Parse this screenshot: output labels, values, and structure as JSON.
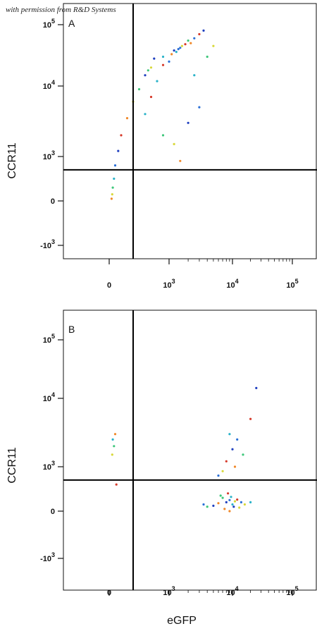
{
  "watermark": "with permission from R&D Systems",
  "chart_data": [
    {
      "type": "scatter",
      "panel": "A",
      "xlabel": "",
      "ylabel": "CCR11",
      "x_ticks": [
        {
          "value": 0,
          "label": "0"
        },
        {
          "value": 1000,
          "label": "10",
          "exp": "3"
        },
        {
          "value": 10000,
          "label": "10",
          "exp": "4"
        },
        {
          "value": 100000,
          "label": "10",
          "exp": "5"
        }
      ],
      "y_ticks": [
        {
          "value": -1000,
          "label": "-10",
          "exp": "3"
        },
        {
          "value": 0,
          "label": "0"
        },
        {
          "value": 1000,
          "label": "10",
          "exp": "3"
        },
        {
          "value": 10000,
          "label": "10",
          "exp": "4"
        },
        {
          "value": 100000,
          "label": "10",
          "exp": "5"
        }
      ],
      "x_gate": 400,
      "y_gate": 700,
      "points": [
        [
          1200,
          38000
        ],
        [
          1500,
          42000
        ],
        [
          900,
          30000
        ],
        [
          2000,
          55000
        ],
        [
          700,
          20000
        ],
        [
          1100,
          33000
        ],
        [
          1800,
          48000
        ],
        [
          600,
          15000
        ],
        [
          2500,
          60000
        ],
        [
          1300,
          36000
        ],
        [
          500,
          9000
        ],
        [
          400,
          6000
        ],
        [
          300,
          3500
        ],
        [
          200,
          2000
        ],
        [
          150,
          1200
        ],
        [
          100,
          800
        ],
        [
          80,
          500
        ],
        [
          60,
          300
        ],
        [
          50,
          150
        ],
        [
          40,
          50
        ],
        [
          3000,
          70000
        ],
        [
          3500,
          80000
        ],
        [
          1000,
          25000
        ],
        [
          800,
          12000
        ],
        [
          650,
          18000
        ],
        [
          1600,
          45000
        ],
        [
          2200,
          50000
        ],
        [
          900,
          22000
        ],
        [
          750,
          28000
        ],
        [
          1400,
          40000
        ],
        [
          600,
          4000
        ],
        [
          900,
          2000
        ],
        [
          1200,
          1500
        ],
        [
          1500,
          900
        ],
        [
          700,
          7000
        ],
        [
          2000,
          3000
        ],
        [
          3000,
          5000
        ],
        [
          2500,
          15000
        ],
        [
          4000,
          30000
        ],
        [
          5000,
          45000
        ]
      ]
    },
    {
      "type": "scatter",
      "panel": "B",
      "xlabel": "eGFP",
      "ylabel": "CCR11",
      "x_ticks": [
        {
          "value": 0,
          "label": "0"
        },
        {
          "value": 1000,
          "label": "10",
          "exp": "3"
        },
        {
          "value": 10000,
          "label": "10",
          "exp": "4"
        },
        {
          "value": 100000,
          "label": "10",
          "exp": "5"
        }
      ],
      "y_ticks": [
        {
          "value": -1000,
          "label": "-10",
          "exp": "3"
        },
        {
          "value": 0,
          "label": "0"
        },
        {
          "value": 1000,
          "label": "10",
          "exp": "3"
        },
        {
          "value": 10000,
          "label": "10",
          "exp": "4"
        },
        {
          "value": 100000,
          "label": "10",
          "exp": "5"
        }
      ],
      "x_gate": 400,
      "y_gate": 700,
      "points": [
        [
          8000,
          200
        ],
        [
          9000,
          250
        ],
        [
          10000,
          150
        ],
        [
          7000,
          300
        ],
        [
          11000,
          220
        ],
        [
          6000,
          180
        ],
        [
          12000,
          260
        ],
        [
          5000,
          120
        ],
        [
          14000,
          200
        ],
        [
          9500,
          320
        ],
        [
          4000,
          100
        ],
        [
          16000,
          150
        ],
        [
          7500,
          50
        ],
        [
          8500,
          400
        ],
        [
          10500,
          100
        ],
        [
          3500,
          150
        ],
        [
          20000,
          200
        ],
        [
          6500,
          350
        ],
        [
          13000,
          80
        ],
        [
          9000,
          0
        ],
        [
          8000,
          1200
        ],
        [
          10000,
          1800
        ],
        [
          12000,
          2500
        ],
        [
          9000,
          3000
        ],
        [
          15000,
          1500
        ],
        [
          7000,
          900
        ],
        [
          11000,
          1000
        ],
        [
          20000,
          5000
        ],
        [
          25000,
          15000
        ],
        [
          6000,
          800
        ],
        [
          60,
          2500
        ],
        [
          80,
          2000
        ],
        [
          50,
          1500
        ],
        [
          100,
          3000
        ],
        [
          120,
          600
        ]
      ]
    }
  ]
}
